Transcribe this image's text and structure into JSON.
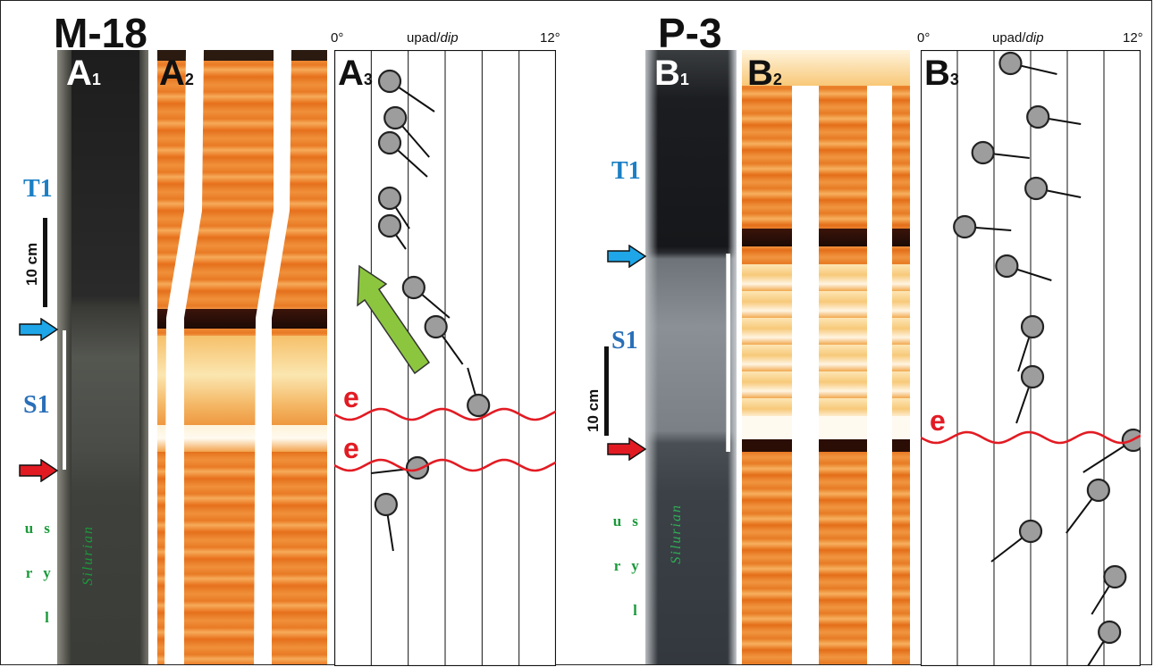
{
  "panels": {
    "left_well": "M-18",
    "right_well": "P-3",
    "A1": {
      "main": "A",
      "sub": "1"
    },
    "A2": {
      "main": "A",
      "sub": "2"
    },
    "A3": {
      "main": "A",
      "sub": "3"
    },
    "B1": {
      "main": "B",
      "sub": "1"
    },
    "B2": {
      "main": "B",
      "sub": "2"
    },
    "B3": {
      "main": "B",
      "sub": "3"
    }
  },
  "axis": {
    "min_label": "0°",
    "max_label": "12°",
    "title_main": "upad/",
    "title_italic": "dip",
    "min_value": 0,
    "max_value": 12,
    "gridlines": 6
  },
  "labels": {
    "t1": "T1",
    "s1": "S1",
    "scale": "10 cm",
    "sylur": "s y l u r",
    "silurian": "Silurian",
    "erosion": "e"
  },
  "colors": {
    "t1": "#1b7fc4",
    "s1": "#2a6fb8",
    "erosion": "#e21b23",
    "arrow_blue": "#1ea6e8",
    "arrow_red": "#e21b23",
    "arrow_green": "#8cc63f",
    "tadpole_fill": "#9d9d9d",
    "green_text": "#1a9a3a"
  },
  "chart_data": [
    {
      "type": "scatter",
      "panel": "A3",
      "xlabel": "upad/dip",
      "xlim": [
        0,
        12
      ],
      "points_dip_deg": [
        3.0,
        3.3,
        3.0,
        3.0,
        3.0,
        4.3,
        5.5,
        7.8,
        4.5,
        2.8
      ]
    },
    {
      "type": "scatter",
      "panel": "B3",
      "xlabel": "upad/dip",
      "xlim": [
        0,
        12
      ],
      "points_dip_deg": [
        4.9,
        6.4,
        3.4,
        6.3,
        2.4,
        4.7,
        6.1,
        6.1,
        11.6,
        9.7,
        6.0,
        10.6,
        10.3
      ]
    }
  ]
}
